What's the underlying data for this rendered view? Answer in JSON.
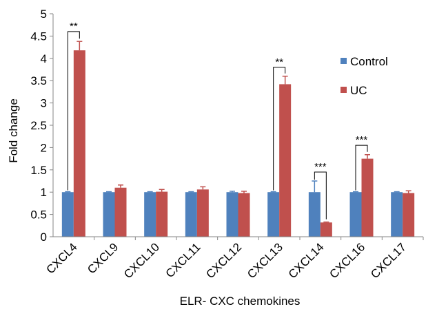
{
  "chart_data": {
    "type": "bar",
    "xlabel": "ELR- CXC chemokines",
    "ylabel": "Fold change",
    "ylim": [
      0,
      5
    ],
    "yticks": [
      "0",
      "0.5",
      "1",
      "1.5",
      "2",
      "2.5",
      "3",
      "3.5",
      "4",
      "4.5",
      "5"
    ],
    "grid": false,
    "legend_position": "right",
    "categories": [
      "CXCL4",
      "CXCL9",
      "CXCL10",
      "CXCL11",
      "CXCL12",
      "CXCL13",
      "CXCL14",
      "CXCL16",
      "CXCL17"
    ],
    "series": [
      {
        "name": "Control",
        "color": "#4f81bd",
        "values": [
          1.0,
          1.0,
          1.0,
          1.0,
          1.0,
          1.0,
          1.0,
          1.0,
          1.0
        ],
        "errors": [
          0.01,
          0.01,
          0.01,
          0.01,
          0.02,
          0.01,
          0.25,
          0.01,
          0.01
        ]
      },
      {
        "name": "UC",
        "color": "#c0504d",
        "values": [
          4.18,
          1.1,
          1.01,
          1.06,
          0.98,
          3.42,
          0.32,
          1.75,
          0.98
        ],
        "errors": [
          0.2,
          0.06,
          0.05,
          0.06,
          0.04,
          0.18,
          0.01,
          0.09,
          0.05
        ]
      }
    ],
    "annotations": [
      {
        "category": "CXCL4",
        "text": "**",
        "bracket_top": 4.6
      },
      {
        "category": "CXCL13",
        "text": "**",
        "bracket_top": 3.8
      },
      {
        "category": "CXCL14",
        "text": "***",
        "bracket_top": 1.45
      },
      {
        "category": "CXCL16",
        "text": "***",
        "bracket_top": 2.05
      }
    ]
  }
}
